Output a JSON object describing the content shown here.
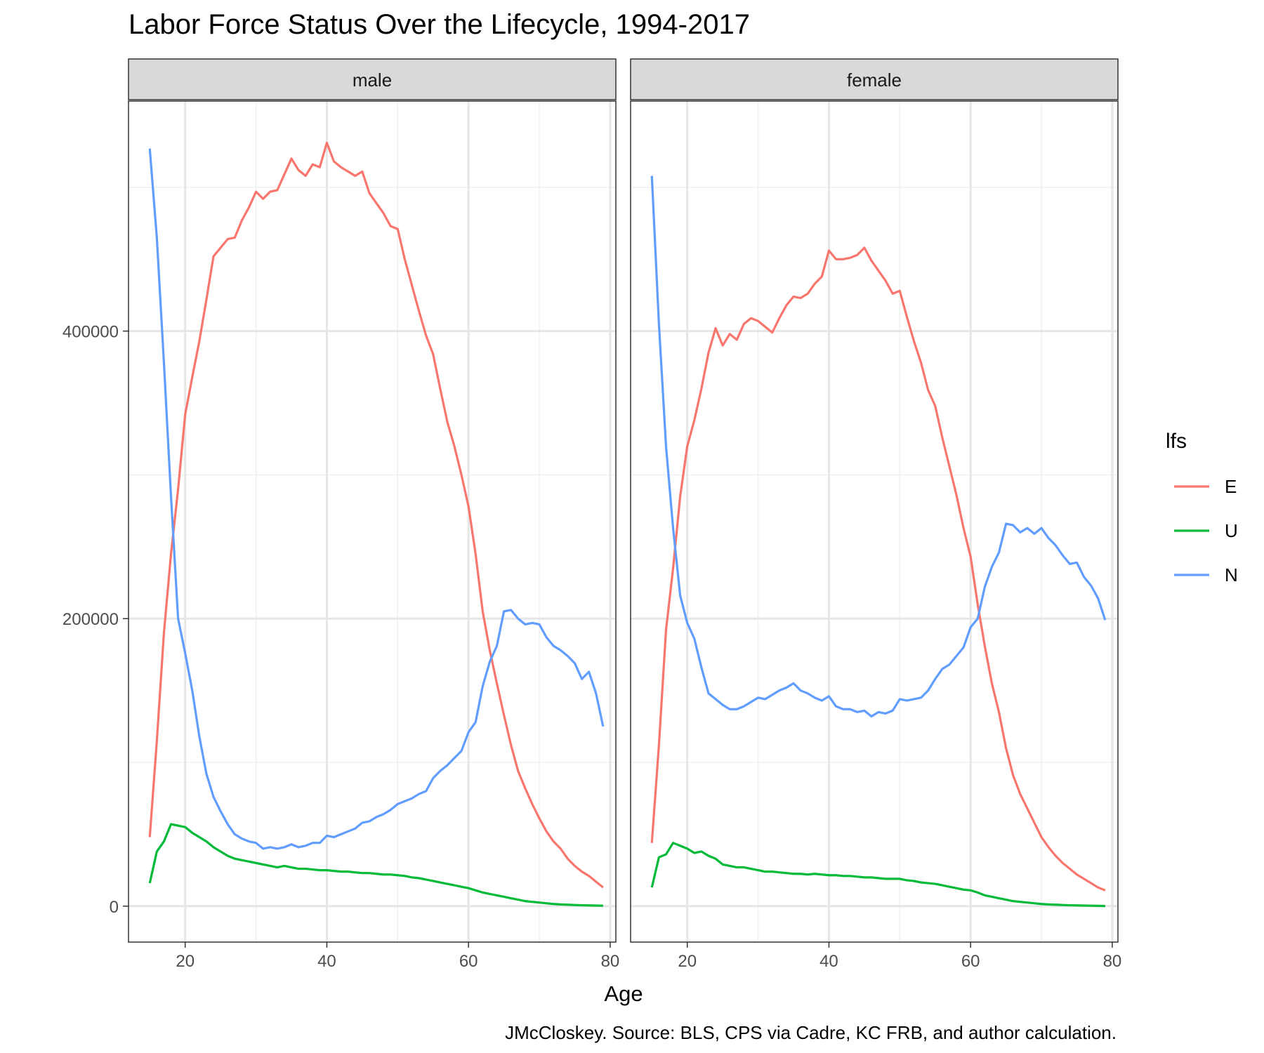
{
  "chart_data": {
    "type": "line",
    "title": "Labor Force Status Over the Lifecycle, 1994-2017",
    "xlabel": "Age",
    "ylabel": "",
    "caption": "JMcCloskey. Source: BLS, CPS via Cadre, KC FRB, and author calculation.",
    "xlim": [
      12,
      80.8
    ],
    "ylim": [
      -25000,
      560000
    ],
    "x_ticks": [
      20,
      40,
      60,
      80
    ],
    "x_tick_labels": [
      "20",
      "40",
      "60",
      "80"
    ],
    "y_ticks": [
      0,
      200000,
      400000
    ],
    "y_tick_labels": [
      "0",
      "200000",
      "400000"
    ],
    "y_minor_ticks": [
      100000,
      300000,
      500000
    ],
    "x_minor_ticks": [
      30,
      50,
      70
    ],
    "grid": true,
    "legend": {
      "title": "lfs",
      "position": "right",
      "entries": [
        {
          "label": "E",
          "color": "#F8766D"
        },
        {
          "label": "U",
          "color": "#00BA38"
        },
        {
          "label": "N",
          "color": "#619CFF"
        }
      ]
    },
    "x": [
      15,
      16,
      17,
      18,
      19,
      20,
      21,
      22,
      23,
      24,
      25,
      26,
      27,
      28,
      29,
      30,
      31,
      32,
      33,
      34,
      35,
      36,
      37,
      38,
      39,
      40,
      41,
      42,
      43,
      44,
      45,
      46,
      47,
      48,
      49,
      50,
      51,
      52,
      53,
      54,
      55,
      56,
      57,
      58,
      59,
      60,
      61,
      62,
      63,
      64,
      65,
      66,
      67,
      68,
      69,
      70,
      71,
      72,
      73,
      74,
      75,
      76,
      77,
      78,
      79
    ],
    "panels": [
      {
        "label": "male",
        "series": [
          {
            "name": "E",
            "color": "#F8766D",
            "values": [
              48000,
              115000,
              190000,
              245000,
              290000,
              342000,
              368000,
              393000,
              422000,
              452000,
              458000,
              464000,
              465000,
              477000,
              486000,
              497000,
              492000,
              497000,
              498000,
              509000,
              520000,
              512000,
              508000,
              516000,
              514000,
              531000,
              518000,
              514000,
              511000,
              508000,
              511000,
              496000,
              489000,
              482000,
              473000,
              471000,
              450000,
              432000,
              414000,
              397000,
              384000,
              360000,
              337000,
              320000,
              300000,
              278000,
              245000,
              205000,
              178000,
              155000,
              133000,
              112000,
              94000,
              82000,
              71000,
              61000,
              52000,
              45000,
              40000,
              33000,
              28000,
              24000,
              21000,
              17000,
              13000
            ]
          },
          {
            "name": "U",
            "color": "#00BA38",
            "values": [
              16000,
              38000,
              45000,
              57000,
              56000,
              55000,
              51000,
              48000,
              45000,
              41000,
              38000,
              35000,
              33000,
              32000,
              31000,
              30000,
              29000,
              28000,
              27000,
              28000,
              27000,
              26000,
              26000,
              25500,
              25000,
              25000,
              24500,
              24000,
              24000,
              23500,
              23000,
              23000,
              22500,
              22000,
              22000,
              21500,
              21000,
              20000,
              19500,
              18500,
              17500,
              16500,
              15500,
              14500,
              13500,
              12500,
              11000,
              9500,
              8500,
              7500,
              6500,
              5500,
              4500,
              3500,
              3000,
              2500,
              2000,
              1500,
              1200,
              1000,
              800,
              600,
              500,
              400,
              300
            ]
          },
          {
            "name": "N",
            "color": "#619CFF",
            "values": [
              527000,
              465000,
              378000,
              285000,
              200000,
              176000,
              150000,
              118000,
              92000,
              76000,
              66000,
              57000,
              50000,
              47000,
              45000,
              44000,
              40000,
              41000,
              40000,
              41000,
              43000,
              41000,
              42000,
              44000,
              44000,
              49000,
              48000,
              50000,
              52000,
              54000,
              58000,
              59000,
              62000,
              64000,
              67000,
              71000,
              73000,
              75000,
              78000,
              80000,
              89000,
              94000,
              98000,
              103000,
              108000,
              121000,
              128000,
              153000,
              170000,
              181000,
              205000,
              206000,
              200000,
              196000,
              197000,
              196000,
              187000,
              181000,
              178000,
              174000,
              169000,
              158000,
              163000,
              148000,
              125000
            ]
          }
        ]
      },
      {
        "label": "female",
        "series": [
          {
            "name": "E",
            "color": "#F8766D",
            "values": [
              44000,
              112000,
              192000,
              235000,
              285000,
              320000,
              338000,
              360000,
              385000,
              402000,
              390000,
              398000,
              394000,
              405000,
              409000,
              407000,
              403000,
              399000,
              409000,
              418000,
              424000,
              423000,
              426000,
              433000,
              438000,
              456000,
              450000,
              450000,
              451000,
              453000,
              458000,
              449000,
              442000,
              435000,
              426000,
              428000,
              410000,
              393000,
              378000,
              359000,
              348000,
              326000,
              306000,
              286000,
              263000,
              243000,
              210000,
              181000,
              155000,
              135000,
              110000,
              91000,
              78000,
              68000,
              58000,
              48000,
              41000,
              35000,
              30000,
              26000,
              22000,
              19000,
              16000,
              13000,
              11000
            ]
          },
          {
            "name": "U",
            "color": "#00BA38",
            "values": [
              13000,
              34000,
              36000,
              44000,
              42000,
              40000,
              37000,
              38000,
              35000,
              33000,
              29000,
              28000,
              27000,
              27000,
              26000,
              25000,
              24000,
              24000,
              23500,
              23000,
              22500,
              22500,
              22000,
              22500,
              22000,
              21500,
              21500,
              21000,
              21000,
              20500,
              20000,
              20000,
              19500,
              19000,
              19000,
              19000,
              18000,
              17500,
              16500,
              16000,
              15500,
              14500,
              13500,
              12500,
              11500,
              11000,
              9500,
              7500,
              6500,
              5500,
              4500,
              3500,
              3000,
              2500,
              2000,
              1500,
              1200,
              1000,
              800,
              600,
              500,
              400,
              300,
              200,
              100
            ]
          },
          {
            "name": "N",
            "color": "#619CFF",
            "values": [
              508000,
              405000,
              320000,
              263000,
              216000,
              197000,
              186000,
              166000,
              148000,
              144000,
              140000,
              137000,
              137000,
              139000,
              142000,
              145000,
              144000,
              147000,
              150000,
              152000,
              155000,
              150000,
              148000,
              145000,
              143000,
              146000,
              139000,
              137000,
              137000,
              135000,
              136000,
              132000,
              135000,
              134000,
              136000,
              144000,
              143000,
              144000,
              145000,
              150000,
              158000,
              165000,
              168000,
              174000,
              180000,
              194000,
              200000,
              222000,
              236000,
              246000,
              266000,
              265000,
              260000,
              263000,
              259000,
              263000,
              256000,
              251000,
              244000,
              238000,
              239000,
              229000,
              223000,
              214000,
              199000
            ]
          }
        ]
      }
    ]
  }
}
